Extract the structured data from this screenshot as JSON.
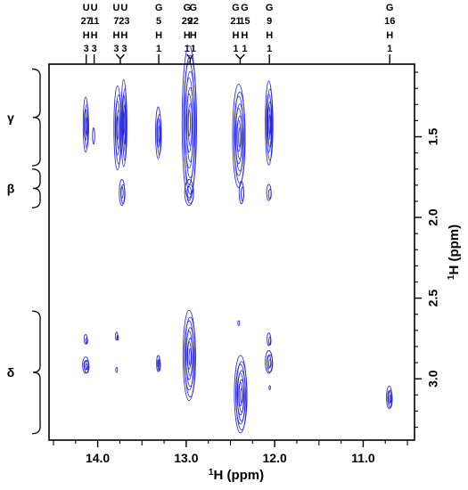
{
  "chart_data": {
    "type": "2D NMR contour plot",
    "xlabel_sup": "1",
    "xlabel_main": "H (ppm)",
    "ylabel_sup": "1",
    "ylabel_main": "H (ppm)",
    "xlim": [
      14.55,
      10.42
    ],
    "ylim": [
      1.05,
      3.38
    ],
    "x_ticks": [
      14.0,
      13.0,
      12.0,
      11.0
    ],
    "x_tick_labels": [
      "14.0",
      "13.0",
      "12.0",
      "11.0"
    ],
    "y_ticks": [
      1.5,
      2.0,
      2.5,
      3.0
    ],
    "y_tick_labels": [
      "1.5",
      "2.0",
      "2.5",
      "3.0"
    ],
    "contour_color": "#2b2bd6",
    "assignments": [
      {
        "label": [
          "U",
          "27",
          "H",
          "3"
        ],
        "x": 14.13
      },
      {
        "label": [
          "U",
          "11",
          "H",
          "3"
        ],
        "x": 14.04
      },
      {
        "label": [
          "U",
          "7",
          "H",
          "3"
        ],
        "x": 13.79
      },
      {
        "label": [
          "U",
          "23",
          "H",
          "3"
        ],
        "x": 13.7
      },
      {
        "label": [
          "G",
          "5",
          "H",
          "1"
        ],
        "x": 13.31
      },
      {
        "label": [
          "G",
          "29",
          "H",
          "1"
        ],
        "x": 12.99
      },
      {
        "label": [
          "G",
          "22",
          "H",
          "1"
        ],
        "x": 12.92
      },
      {
        "label": [
          "G",
          "21",
          "H",
          "1"
        ],
        "x": 12.44
      },
      {
        "label": [
          "G",
          "15",
          "H",
          "1"
        ],
        "x": 12.34
      },
      {
        "label": [
          "G",
          "9",
          "H",
          "1"
        ],
        "x": 12.06
      },
      {
        "label": [
          "G",
          "16",
          "H",
          "1"
        ],
        "x": 10.7
      }
    ],
    "regions": [
      {
        "label": "γ",
        "y_range": [
          1.08,
          1.68
        ]
      },
      {
        "label": "β",
        "y_range": [
          1.7,
          1.94
        ]
      },
      {
        "label": "δ",
        "y_range": [
          2.58,
          3.34
        ]
      }
    ],
    "peaks": [
      {
        "x": 14.13,
        "y": 1.43,
        "sx": 0.028,
        "sy": 0.17,
        "n": 4
      },
      {
        "x": 14.04,
        "y": 1.5,
        "sx": 0.012,
        "sy": 0.05,
        "n": 1
      },
      {
        "x": 13.77,
        "y": 1.45,
        "sx": 0.04,
        "sy": 0.26,
        "n": 5
      },
      {
        "x": 13.7,
        "y": 1.42,
        "sx": 0.03,
        "sy": 0.27,
        "n": 5
      },
      {
        "x": 13.72,
        "y": 1.85,
        "sx": 0.03,
        "sy": 0.08,
        "n": 3
      },
      {
        "x": 13.31,
        "y": 1.48,
        "sx": 0.03,
        "sy": 0.16,
        "n": 4
      },
      {
        "x": 12.96,
        "y": 1.42,
        "sx": 0.08,
        "sy": 0.48,
        "n": 9
      },
      {
        "x": 12.96,
        "y": 1.85,
        "sx": 0.05,
        "sy": 0.08,
        "n": 3
      },
      {
        "x": 12.4,
        "y": 1.5,
        "sx": 0.07,
        "sy": 0.32,
        "n": 8
      },
      {
        "x": 12.37,
        "y": 1.85,
        "sx": 0.025,
        "sy": 0.07,
        "n": 2
      },
      {
        "x": 12.06,
        "y": 1.42,
        "sx": 0.04,
        "sy": 0.26,
        "n": 6
      },
      {
        "x": 12.06,
        "y": 1.85,
        "sx": 0.025,
        "sy": 0.05,
        "n": 2
      },
      {
        "x": 14.13,
        "y": 2.76,
        "sx": 0.018,
        "sy": 0.03,
        "n": 2
      },
      {
        "x": 14.13,
        "y": 2.92,
        "sx": 0.035,
        "sy": 0.05,
        "n": 4
      },
      {
        "x": 13.78,
        "y": 2.74,
        "sx": 0.012,
        "sy": 0.025,
        "n": 2
      },
      {
        "x": 13.78,
        "y": 2.95,
        "sx": 0.01,
        "sy": 0.015,
        "n": 1
      },
      {
        "x": 13.31,
        "y": 2.91,
        "sx": 0.018,
        "sy": 0.05,
        "n": 3
      },
      {
        "x": 12.96,
        "y": 2.86,
        "sx": 0.07,
        "sy": 0.28,
        "n": 8
      },
      {
        "x": 12.4,
        "y": 2.66,
        "sx": 0.01,
        "sy": 0.015,
        "n": 1
      },
      {
        "x": 12.38,
        "y": 3.1,
        "sx": 0.07,
        "sy": 0.24,
        "n": 8
      },
      {
        "x": 12.06,
        "y": 2.76,
        "sx": 0.02,
        "sy": 0.04,
        "n": 2
      },
      {
        "x": 12.06,
        "y": 2.9,
        "sx": 0.04,
        "sy": 0.07,
        "n": 4
      },
      {
        "x": 12.05,
        "y": 3.06,
        "sx": 0.008,
        "sy": 0.012,
        "n": 1
      },
      {
        "x": 10.7,
        "y": 3.12,
        "sx": 0.03,
        "sy": 0.07,
        "n": 4
      }
    ]
  }
}
